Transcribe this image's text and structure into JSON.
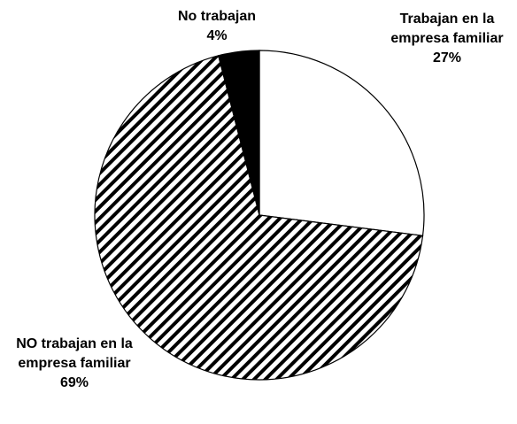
{
  "chart_data": {
    "type": "pie",
    "categories": [
      "Trabajan en la empresa familiar",
      "NO trabajan en la empresa familiar",
      "No trabajan"
    ],
    "values": [
      27,
      69,
      4
    ],
    "value_labels": [
      "27%",
      "69%",
      "4%"
    ],
    "colors": [
      "#ffffff",
      "hatched",
      "#000000"
    ]
  }
}
